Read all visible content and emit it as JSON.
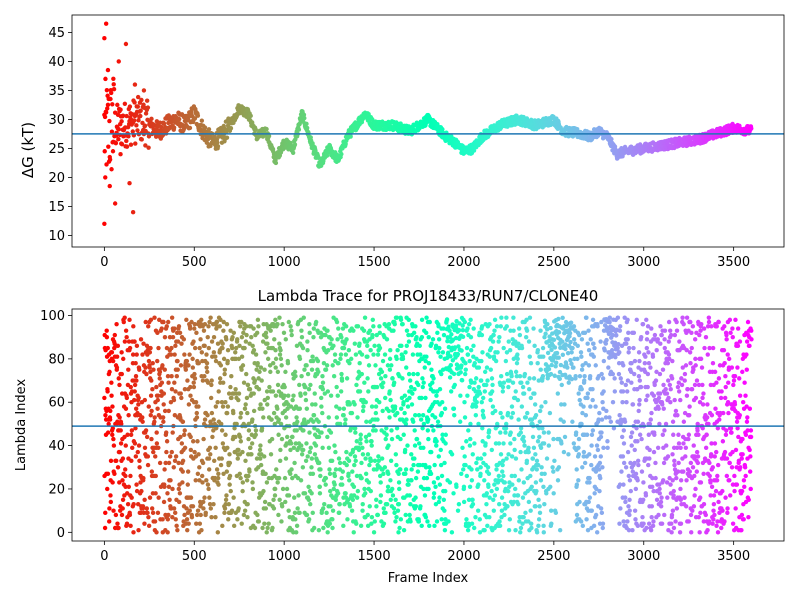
{
  "chart_data": [
    {
      "type": "scatter",
      "title": "",
      "xlabel": "",
      "ylabel": "ΔG (kT)",
      "xlim": [
        -180,
        3780
      ],
      "ylim": [
        8,
        48
      ],
      "xticks": [
        0,
        500,
        1000,
        1500,
        2000,
        2500,
        3000,
        3500
      ],
      "yticks": [
        10,
        15,
        20,
        25,
        30,
        35,
        40,
        45
      ],
      "colormap": "rainbow (reversed: red at frame 0, violet at final frame)",
      "hline": {
        "y": 27.5,
        "color": "#1f77b4"
      },
      "n_points_approx": 3600,
      "trend": [
        {
          "x": 0,
          "y": 28
        },
        {
          "x": 100,
          "y": 29
        },
        {
          "x": 200,
          "y": 30
        },
        {
          "x": 300,
          "y": 28
        },
        {
          "x": 400,
          "y": 30
        },
        {
          "x": 450,
          "y": 29
        },
        {
          "x": 500,
          "y": 31
        },
        {
          "x": 550,
          "y": 28
        },
        {
          "x": 600,
          "y": 26
        },
        {
          "x": 650,
          "y": 27
        },
        {
          "x": 700,
          "y": 29
        },
        {
          "x": 750,
          "y": 32
        },
        {
          "x": 800,
          "y": 31
        },
        {
          "x": 850,
          "y": 27
        },
        {
          "x": 900,
          "y": 28
        },
        {
          "x": 950,
          "y": 23
        },
        {
          "x": 1000,
          "y": 26
        },
        {
          "x": 1050,
          "y": 25
        },
        {
          "x": 1100,
          "y": 31
        },
        {
          "x": 1150,
          "y": 26
        },
        {
          "x": 1200,
          "y": 22
        },
        {
          "x": 1250,
          "y": 25
        },
        {
          "x": 1300,
          "y": 23
        },
        {
          "x": 1350,
          "y": 27
        },
        {
          "x": 1400,
          "y": 29
        },
        {
          "x": 1450,
          "y": 31
        },
        {
          "x": 1500,
          "y": 29
        },
        {
          "x": 1600,
          "y": 29
        },
        {
          "x": 1700,
          "y": 28
        },
        {
          "x": 1800,
          "y": 30
        },
        {
          "x": 1900,
          "y": 27
        },
        {
          "x": 1950,
          "y": 26
        },
        {
          "x": 2000,
          "y": 24.5
        },
        {
          "x": 2050,
          "y": 25
        },
        {
          "x": 2100,
          "y": 27
        },
        {
          "x": 2200,
          "y": 29
        },
        {
          "x": 2300,
          "y": 30
        },
        {
          "x": 2400,
          "y": 29
        },
        {
          "x": 2500,
          "y": 30
        },
        {
          "x": 2550,
          "y": 28
        },
        {
          "x": 2650,
          "y": 27.5
        },
        {
          "x": 2700,
          "y": 27
        },
        {
          "x": 2750,
          "y": 28
        },
        {
          "x": 2800,
          "y": 27
        },
        {
          "x": 2850,
          "y": 24
        },
        {
          "x": 2900,
          "y": 24.5
        },
        {
          "x": 3000,
          "y": 25
        },
        {
          "x": 3100,
          "y": 25.5
        },
        {
          "x": 3200,
          "y": 26
        },
        {
          "x": 3300,
          "y": 26.5
        },
        {
          "x": 3400,
          "y": 27.5
        },
        {
          "x": 3500,
          "y": 28.5
        },
        {
          "x": 3600,
          "y": 28
        }
      ],
      "early_spread": [
        {
          "x": 0,
          "y": 44
        },
        {
          "x": 10,
          "y": 46.5
        },
        {
          "x": 0,
          "y": 12
        },
        {
          "x": 5,
          "y": 20
        },
        {
          "x": 20,
          "y": 38.5
        },
        {
          "x": 30,
          "y": 18.5
        },
        {
          "x": 50,
          "y": 37
        },
        {
          "x": 60,
          "y": 15.5
        },
        {
          "x": 80,
          "y": 40
        },
        {
          "x": 90,
          "y": 24
        },
        {
          "x": 120,
          "y": 43
        },
        {
          "x": 140,
          "y": 19
        },
        {
          "x": 160,
          "y": 14
        },
        {
          "x": 170,
          "y": 36
        },
        {
          "x": 220,
          "y": 35
        }
      ]
    },
    {
      "type": "scatter",
      "title": "Lambda Trace for PROJ18433/RUN7/CLONE40",
      "xlabel": "Frame Index",
      "ylabel": "Lambda Index",
      "xlim": [
        -180,
        3780
      ],
      "ylim": [
        -4,
        103
      ],
      "xticks": [
        0,
        500,
        1000,
        1500,
        2000,
        2500,
        3000,
        3500
      ],
      "yticks": [
        0,
        20,
        40,
        60,
        80,
        100
      ],
      "colormap": "rainbow (reversed: red at frame 0, violet at final frame)",
      "hline": {
        "y": 49,
        "color": "#1f77b4"
      },
      "n_points_approx": 3600,
      "lambda_range": [
        0,
        99
      ],
      "gaps": [
        {
          "x_from": 2540,
          "x_to": 2620,
          "y_from": 0,
          "y_to": 35
        },
        {
          "x_from": 2780,
          "x_to": 2860,
          "y_from": 0,
          "y_to": 30
        }
      ],
      "dense_top_regions": [
        {
          "x_from": 1900,
          "x_to": 2000,
          "y_from": 70,
          "y_to": 99
        },
        {
          "x_from": 2450,
          "x_to": 2600,
          "y_from": 70,
          "y_to": 99
        },
        {
          "x_from": 2780,
          "x_to": 2860,
          "y_from": 80,
          "y_to": 99
        }
      ]
    }
  ]
}
